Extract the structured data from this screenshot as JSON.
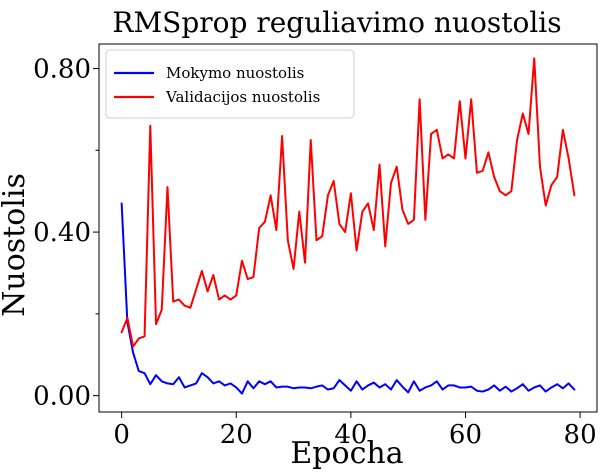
{
  "chart_data": {
    "type": "line",
    "title": "RMSprop reguliavimo nuostolis",
    "xlabel": "Epocha",
    "ylabel": "Nuostolis",
    "xlim": [
      -3.95,
      82.95
    ],
    "ylim": [
      -0.04,
      0.86
    ],
    "xticks": [
      0,
      20,
      40,
      60,
      80
    ],
    "xtick_labels": [
      "0",
      "20",
      "40",
      "60",
      "80"
    ],
    "yticks": [
      0.0,
      0.4,
      0.8
    ],
    "ytick_labels": [
      "0.00",
      "0.40",
      "0.80"
    ],
    "y_minor_ticks": [
      0.2,
      0.6
    ],
    "grid": false,
    "legend_position": "upper-left",
    "x": [
      0,
      1,
      2,
      3,
      4,
      5,
      6,
      7,
      8,
      9,
      10,
      11,
      12,
      13,
      14,
      15,
      16,
      17,
      18,
      19,
      20,
      21,
      22,
      23,
      24,
      25,
      26,
      27,
      28,
      29,
      30,
      31,
      32,
      33,
      34,
      35,
      36,
      37,
      38,
      39,
      40,
      41,
      42,
      43,
      44,
      45,
      46,
      47,
      48,
      49,
      50,
      51,
      52,
      53,
      54,
      55,
      56,
      57,
      58,
      59,
      60,
      61,
      62,
      63,
      64,
      65,
      66,
      67,
      68,
      69,
      70,
      71,
      72,
      73,
      74,
      75,
      76,
      77,
      78,
      79
    ],
    "series": [
      {
        "name": "Mokymo nuostolis",
        "color": "#0000ff",
        "values": [
          0.47,
          0.18,
          0.105,
          0.06,
          0.055,
          0.028,
          0.05,
          0.035,
          0.03,
          0.028,
          0.045,
          0.02,
          0.025,
          0.03,
          0.055,
          0.045,
          0.03,
          0.035,
          0.025,
          0.03,
          0.02,
          0.005,
          0.035,
          0.018,
          0.035,
          0.028,
          0.035,
          0.02,
          0.022,
          0.022,
          0.018,
          0.02,
          0.02,
          0.018,
          0.022,
          0.025,
          0.015,
          0.018,
          0.038,
          0.025,
          0.012,
          0.035,
          0.015,
          0.025,
          0.032,
          0.02,
          0.028,
          0.015,
          0.038,
          0.022,
          0.008,
          0.035,
          0.012,
          0.02,
          0.025,
          0.035,
          0.015,
          0.025,
          0.025,
          0.02,
          0.02,
          0.022,
          0.012,
          0.01,
          0.015,
          0.025,
          0.012,
          0.022,
          0.01,
          0.018,
          0.028,
          0.012,
          0.02,
          0.025,
          0.01,
          0.02,
          0.028,
          0.018,
          0.03,
          0.015
        ]
      },
      {
        "name": "Validacijos nuostolis",
        "color": "#ff0000",
        "values": [
          0.155,
          0.19,
          0.12,
          0.14,
          0.145,
          0.66,
          0.175,
          0.21,
          0.51,
          0.23,
          0.235,
          0.22,
          0.215,
          0.26,
          0.305,
          0.255,
          0.295,
          0.235,
          0.245,
          0.235,
          0.245,
          0.33,
          0.285,
          0.29,
          0.41,
          0.425,
          0.49,
          0.405,
          0.635,
          0.38,
          0.31,
          0.45,
          0.325,
          0.625,
          0.38,
          0.39,
          0.49,
          0.525,
          0.42,
          0.4,
          0.495,
          0.355,
          0.45,
          0.47,
          0.405,
          0.565,
          0.365,
          0.52,
          0.56,
          0.455,
          0.42,
          0.43,
          0.725,
          0.43,
          0.64,
          0.65,
          0.58,
          0.59,
          0.58,
          0.72,
          0.58,
          0.725,
          0.545,
          0.55,
          0.595,
          0.535,
          0.5,
          0.49,
          0.5,
          0.625,
          0.69,
          0.64,
          0.825,
          0.56,
          0.465,
          0.515,
          0.535,
          0.65,
          0.58,
          0.49
        ]
      }
    ]
  }
}
